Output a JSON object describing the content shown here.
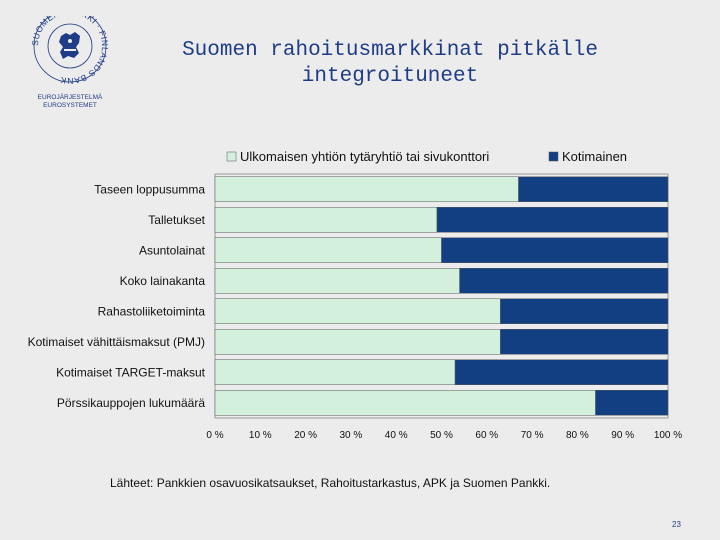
{
  "logo": {
    "seal_text": "SUOMEN PANKKI · FINLANDS BANK",
    "line1": "EUROJÄRJESTELMÄ",
    "line2": "EUROSYSTEMET"
  },
  "title": {
    "line1": "Suomen rahoitusmarkkinat pitkälle",
    "line2": "integroituneet"
  },
  "chart_data": {
    "type": "bar",
    "orientation": "horizontal",
    "stacked": true,
    "title": "",
    "xlabel": "",
    "ylabel": "",
    "xlim": [
      0,
      100
    ],
    "categories": [
      "Taseen loppusumma",
      "Talletukset",
      "Asuntolainat",
      "Koko lainakanta",
      "Rahastoliiketoiminta",
      "Kotimaiset vähittäismaksut (PMJ)",
      "Kotimaiset TARGET-maksut",
      "Pörssikauppojen lukumäärä"
    ],
    "x_ticks": [
      "0 %",
      "10 %",
      "20 %",
      "30 %",
      "40 %",
      "50 %",
      "60 %",
      "70 %",
      "80 %",
      "90 %",
      "100 %"
    ],
    "series": [
      {
        "name": "Ulkomaisen yhtiön tytäryhtiö tai sivukonttori",
        "color": "#d3f0dc",
        "values": [
          67,
          49,
          50,
          54,
          63,
          63,
          53,
          84
        ]
      },
      {
        "name": "Kotimainen",
        "color": "#123f82",
        "values": [
          33,
          51,
          50,
          46,
          37,
          37,
          47,
          16
        ]
      }
    ],
    "legend_position": "top"
  },
  "source_text": "Lähteet: Pankkien osavuosikatsaukset, Rahoitustarkastus, APK ja Suomen Pankki.",
  "page_number": "23"
}
